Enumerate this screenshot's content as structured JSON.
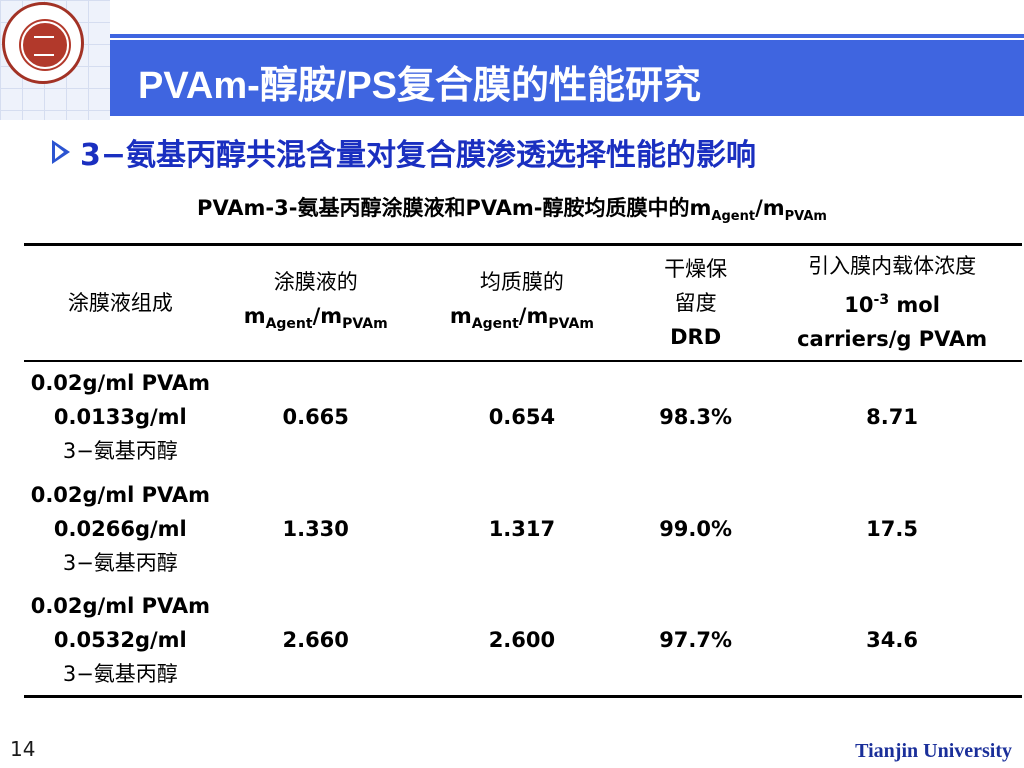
{
  "header": {
    "title": "PVAm-醇胺/PS复合膜的性能研究",
    "logo": "university-seal",
    "accent_color": "#3f65e0"
  },
  "bullet": {
    "text": "3−氨基丙醇共混含量对复合膜渗透选择性能的影响",
    "color": "#1a2fc0"
  },
  "caption": {
    "prefix": "PVAm-3-氨基丙醇涂膜液和PVAm-醇胺均质膜中的m",
    "sub1": "Agent",
    "mid": "/m",
    "sub2": "PVAm"
  },
  "table": {
    "headers": {
      "col1": "涂膜液组成",
      "col2_line1": "涂膜液的",
      "col2_m1": "m",
      "col2_sub1": "Agent",
      "col2_m2": "/m",
      "col2_sub2": "PVAm",
      "col3_line1": "均质膜的",
      "col3_m1": "m",
      "col3_sub1": "Agent",
      "col3_m2": "/m",
      "col3_sub2": "PVAm",
      "col4_line1": "干燥保",
      "col4_line2": "留度",
      "col4_line3": "DRD",
      "col5_line1": "引入膜内载体浓度",
      "col5_line2a": "10",
      "col5_sup": "-3",
      "col5_line2b": " mol",
      "col5_line3": "carriers/g PVAm"
    },
    "rows": [
      {
        "comp_line1": "0.02g/ml PVAm",
        "comp_line2": "0.0133g/ml",
        "comp_line3": "3−氨基丙醇",
        "coating_ratio": "0.665",
        "film_ratio": "0.654",
        "drd": "98.3%",
        "carrier": "8.71"
      },
      {
        "comp_line1": "0.02g/ml PVAm",
        "comp_line2": "0.0266g/ml",
        "comp_line3": "3−氨基丙醇",
        "coating_ratio": "1.330",
        "film_ratio": "1.317",
        "drd": "99.0%",
        "carrier": "17.5"
      },
      {
        "comp_line1": "0.02g/ml PVAm",
        "comp_line2": "0.0532g/ml",
        "comp_line3": "3−氨基丙醇",
        "coating_ratio": "2.660",
        "film_ratio": "2.600",
        "drd": "97.7%",
        "carrier": "34.6"
      }
    ]
  },
  "footer": {
    "page_number": "14",
    "organization": "Tianjin University"
  }
}
